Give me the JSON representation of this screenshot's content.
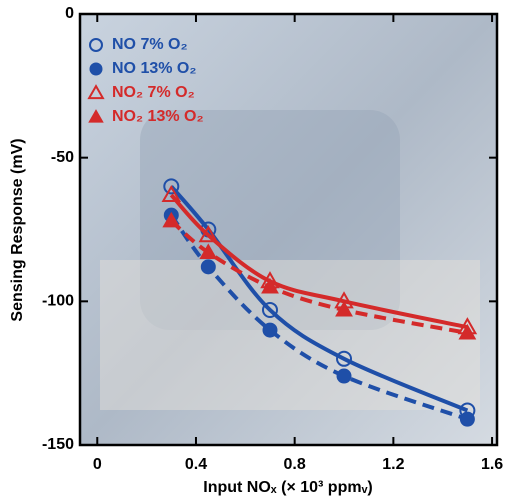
{
  "chart_data": {
    "type": "line",
    "xlabel": "Input NOₓ (× 10³ ppmᵥ)",
    "ylabel": "Sensing Response (mV)",
    "xlim": [
      -0.07,
      1.62
    ],
    "ylim": [
      -150,
      0
    ],
    "xticks": [
      0,
      0.4,
      0.8,
      1.2,
      1.6
    ],
    "yticks": [
      0,
      -50,
      -100,
      -150
    ],
    "legend": "upper left",
    "series": [
      {
        "name": "NO 7% O₂",
        "color": "#1f4fa8",
        "marker": "circle",
        "filled": false,
        "dashed": false,
        "x": [
          0.3,
          0.45,
          0.7,
          1.0,
          1.5
        ],
        "values": [
          -60,
          -75,
          -103,
          -120,
          -138
        ]
      },
      {
        "name": "NO 13% O₂",
        "color": "#1f4fa8",
        "marker": "circle",
        "filled": true,
        "dashed": true,
        "x": [
          0.3,
          0.45,
          0.7,
          1.0,
          1.5
        ],
        "values": [
          -70,
          -88,
          -110,
          -126,
          -141
        ]
      },
      {
        "name": "NO₂ 7% O₂",
        "color": "#d42a2a",
        "marker": "triangle",
        "filled": false,
        "dashed": false,
        "x": [
          0.3,
          0.45,
          0.7,
          1.0,
          1.5
        ],
        "values": [
          -63,
          -77,
          -93,
          -100,
          -109
        ]
      },
      {
        "name": "NO₂ 13% O₂",
        "color": "#d42a2a",
        "marker": "triangle",
        "filled": true,
        "dashed": true,
        "x": [
          0.3,
          0.45,
          0.7,
          1.0,
          1.5
        ],
        "values": [
          -72,
          -83,
          -95,
          -103,
          -111
        ]
      }
    ]
  }
}
